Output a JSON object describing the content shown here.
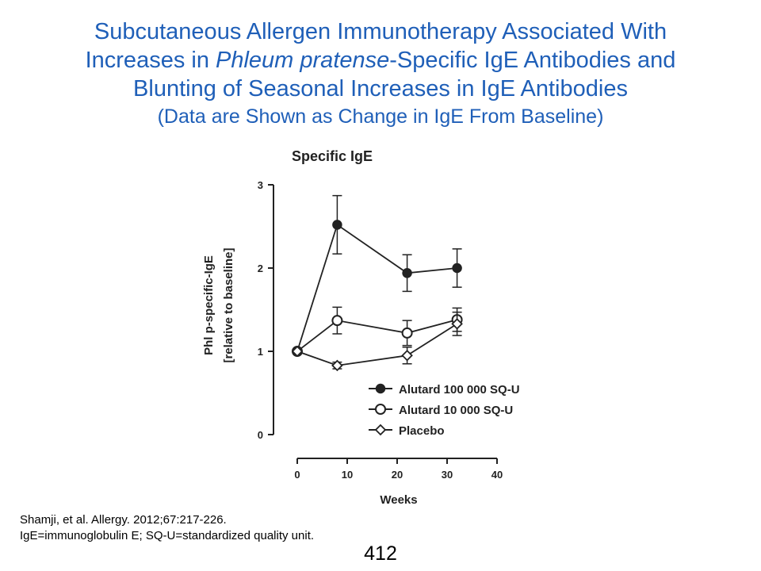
{
  "slide": {
    "title_line1": "Subcutaneous Allergen Immunotherapy Associated With",
    "title_line2_pre": "Increases in ",
    "title_line2_ital": "Phleum pratense",
    "title_line2_post": "-Specific IgE Antibodies and",
    "title_line3": "Blunting of Seasonal Increases in IgE Antibodies",
    "title_sub": "(Data are Shown as Change in IgE From Baseline)",
    "title_color": "#1f5fb8",
    "footnote_line1": "Shamji, et al. Allergy. 2012;67:217-226.",
    "footnote_line2": "IgE=immunoglobulin E; SQ-U=standardized quality unit.",
    "page_number": "412"
  },
  "chart_data": {
    "type": "line",
    "title": "Specific IgE",
    "xlabel": "Weeks",
    "ylabel_line1": "Phl p-specific-IgE",
    "ylabel_line2": "[relative to baseline]",
    "xlim": [
      0,
      40
    ],
    "ylim": [
      0,
      3
    ],
    "xticks": [
      0,
      10,
      20,
      30,
      40
    ],
    "yticks": [
      0,
      1,
      2,
      3
    ],
    "grid": false,
    "legend_position": "lower-right",
    "series": [
      {
        "name": "Alutard 100 000 SQ-U",
        "marker": "filled-circle",
        "x": [
          0,
          8,
          22,
          32
        ],
        "y": [
          1.0,
          2.52,
          1.94,
          2.0
        ],
        "err": [
          0,
          0.35,
          0.22,
          0.23
        ]
      },
      {
        "name": "Alutard 10 000 SQ-U",
        "marker": "open-circle",
        "x": [
          0,
          8,
          22,
          32
        ],
        "y": [
          1.0,
          1.37,
          1.22,
          1.38
        ],
        "err": [
          0,
          0.16,
          0.15,
          0.14
        ]
      },
      {
        "name": "Placebo",
        "marker": "open-diamond",
        "x": [
          0,
          8,
          22,
          32
        ],
        "y": [
          1.0,
          0.83,
          0.95,
          1.33
        ],
        "err": [
          0,
          0.04,
          0.1,
          0.14
        ]
      }
    ]
  }
}
